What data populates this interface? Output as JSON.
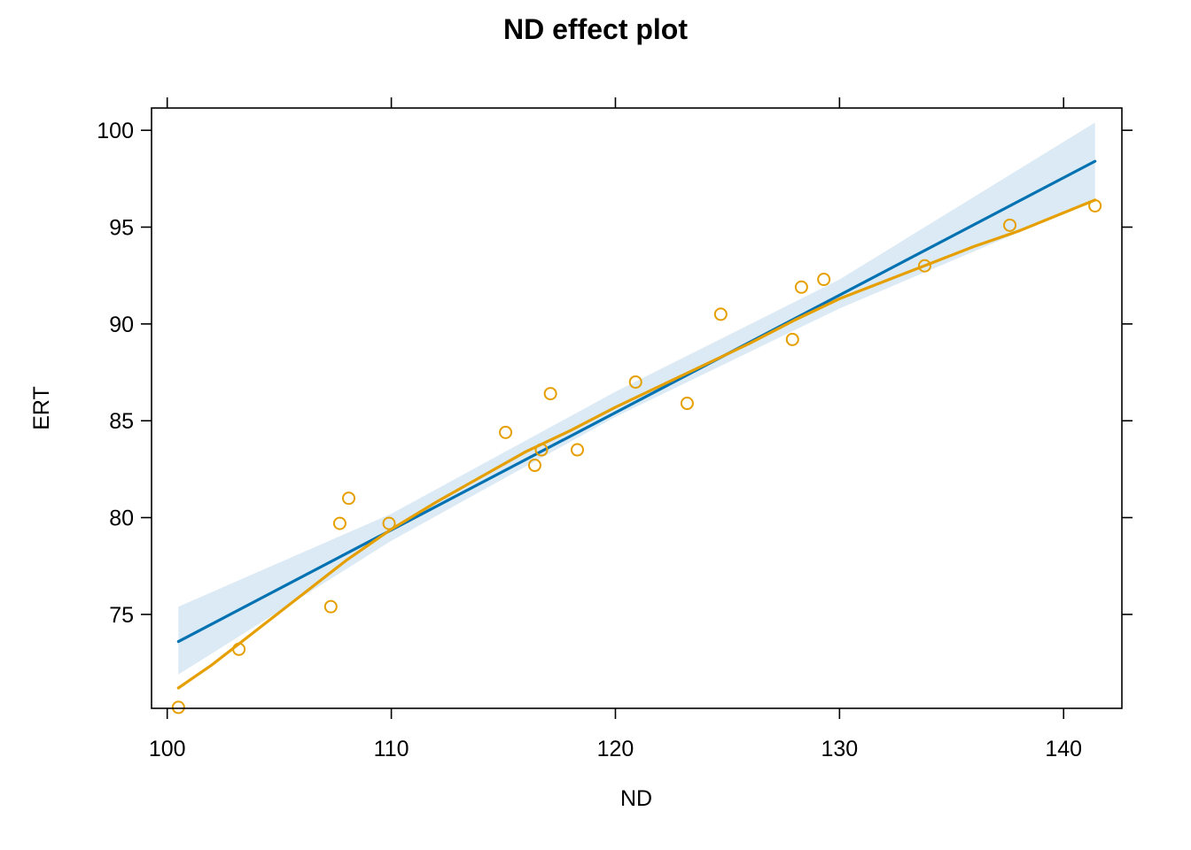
{
  "chart_data": {
    "type": "scatter",
    "title": "ND effect plot",
    "xlabel": "ND",
    "ylabel": "ERT",
    "xlim": [
      99.3,
      142.6
    ],
    "ylim": [
      70.15,
      101.15
    ],
    "xticks": [
      100,
      110,
      120,
      130,
      140
    ],
    "yticks": [
      75,
      80,
      85,
      90,
      95,
      100
    ],
    "grid": false,
    "legend": "none",
    "colors": {
      "fit": "#0072B2",
      "band": "#DCEAF5",
      "smooth": "#E69F00",
      "points": "#E69F00"
    },
    "fit_line": {
      "x": [
        100.5,
        141.4
      ],
      "y": [
        73.6,
        98.4
      ]
    },
    "confidence_band": {
      "x": [
        100.5,
        110,
        120,
        130,
        141.4
      ],
      "lower": [
        71.9,
        78.8,
        85.2,
        90.8,
        96.4
      ],
      "upper": [
        75.4,
        80.2,
        86.5,
        92.3,
        100.4
      ]
    },
    "smooth_line": {
      "x": [
        100.5,
        102,
        104,
        106,
        108,
        110,
        112,
        114,
        116,
        118,
        120,
        122,
        124,
        126,
        128,
        130,
        132,
        134,
        136,
        138,
        141.4
      ],
      "y": [
        71.2,
        72.4,
        74.2,
        76.0,
        77.8,
        79.4,
        80.8,
        82.1,
        83.4,
        84.5,
        85.7,
        86.8,
        87.9,
        89.0,
        90.2,
        91.3,
        92.2,
        93.1,
        94.0,
        94.8,
        96.4
      ]
    },
    "points": [
      {
        "x": 100.5,
        "y": 70.2
      },
      {
        "x": 103.2,
        "y": 73.2
      },
      {
        "x": 107.3,
        "y": 75.4
      },
      {
        "x": 107.7,
        "y": 79.7
      },
      {
        "x": 108.1,
        "y": 81.0
      },
      {
        "x": 109.9,
        "y": 79.7
      },
      {
        "x": 115.1,
        "y": 84.4
      },
      {
        "x": 116.4,
        "y": 82.7
      },
      {
        "x": 116.7,
        "y": 83.5
      },
      {
        "x": 117.1,
        "y": 86.4
      },
      {
        "x": 118.3,
        "y": 83.5
      },
      {
        "x": 120.9,
        "y": 87.0
      },
      {
        "x": 123.2,
        "y": 85.9
      },
      {
        "x": 124.7,
        "y": 90.5
      },
      {
        "x": 127.9,
        "y": 89.2
      },
      {
        "x": 128.3,
        "y": 91.9
      },
      {
        "x": 129.3,
        "y": 92.3
      },
      {
        "x": 133.8,
        "y": 93.0
      },
      {
        "x": 137.6,
        "y": 95.1
      },
      {
        "x": 141.4,
        "y": 96.1
      }
    ]
  }
}
